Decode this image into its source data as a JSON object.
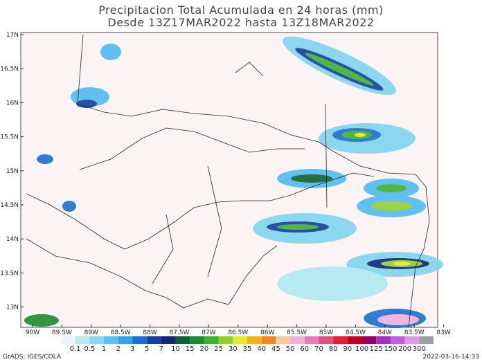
{
  "title": {
    "line1": "Precipitacion Total Acumulada en 24 horas (mm)",
    "line2": "Desde 13Z17MAR2022 hasta 13Z18MAR2022"
  },
  "map": {
    "lat_labels": [
      "17N",
      "16.5N",
      "16N",
      "15.5N",
      "15N",
      "14.5N",
      "14N",
      "13.5N",
      "13N"
    ],
    "lon_labels": [
      "90W",
      "89.5W",
      "89W",
      "88.5W",
      "88W",
      "87.5W",
      "87W",
      "86.5W",
      "86W",
      "85.5W",
      "85W",
      "84.5W",
      "84W",
      "83.5W",
      "83W"
    ]
  },
  "legend": {
    "labels": [
      "0.1",
      "0.5",
      "1",
      "2",
      "3",
      "5",
      "7",
      "10",
      "15",
      "20",
      "25",
      "30",
      "35",
      "40",
      "45",
      "50",
      "60",
      "70",
      "80",
      "90",
      "100",
      "125",
      "150",
      "200",
      "300"
    ],
    "colors": [
      "#e6f6fa",
      "#b8e8f2",
      "#8cd6f2",
      "#5cc0f0",
      "#34a2e8",
      "#1c70d0",
      "#1040a0",
      "#102870",
      "#106030",
      "#1c8c2c",
      "#40b030",
      "#90d030",
      "#e8e830",
      "#f8b020",
      "#f08820",
      "#f8c8a0",
      "#f0b0d8",
      "#e080c0",
      "#e05080",
      "#e02030",
      "#c00020",
      "#900060",
      "#a030c0",
      "#c060e0",
      "#e098e8",
      "#a0a0a0"
    ]
  },
  "footer": {
    "credit": "GrADS: IGES/COLA",
    "timestamp": "2022-03-16-14:33"
  }
}
